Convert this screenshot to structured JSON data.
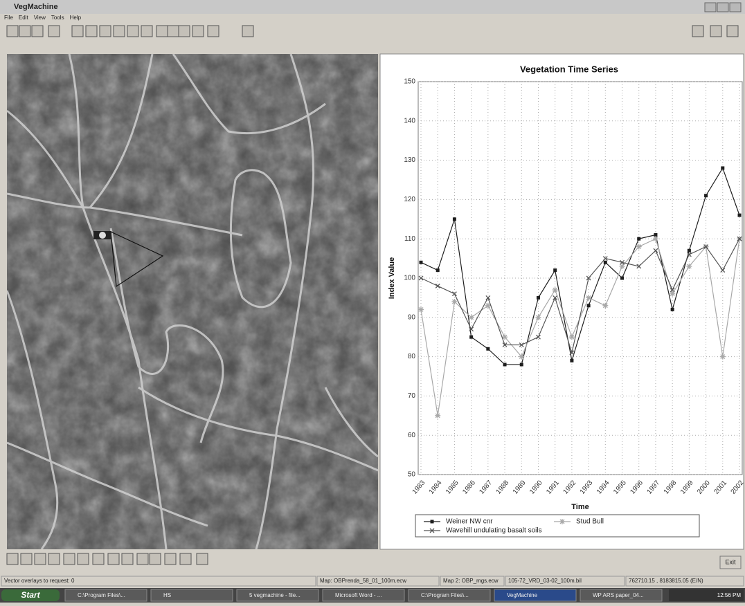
{
  "window": {
    "title": "VegMachine"
  },
  "menu": [
    "File",
    "Edit",
    "View",
    "Tools",
    "Help"
  ],
  "chart_data": {
    "type": "line",
    "title": "Vegetation Time Series",
    "x_label": "Time",
    "y_label": "Index Value",
    "categories": [
      "1983",
      "1984",
      "1985",
      "1986",
      "1987",
      "1988",
      "1989",
      "1990",
      "1991",
      "1992",
      "1993",
      "1994",
      "1995",
      "1996",
      "1997",
      "1998",
      "1999",
      "2000",
      "2001",
      "2002"
    ],
    "series": [
      {
        "name": "Weiner NW cnr",
        "color": "#1e1e1e",
        "marker": "square",
        "values": [
          104,
          102,
          115,
          85,
          82,
          78,
          78,
          95,
          102,
          79,
          93,
          104,
          100,
          110,
          111,
          92,
          107,
          121,
          128,
          116
        ]
      },
      {
        "name": "Stud Bull",
        "color": "#a8a8a8",
        "marker": "star",
        "values": [
          92,
          65,
          94,
          90,
          93,
          85,
          80,
          90,
          97,
          85,
          95,
          93,
          103,
          108,
          110,
          96,
          103,
          108,
          80,
          110
        ]
      },
      {
        "name": "Wavehill undulating basalt soils",
        "color": "#555555",
        "marker": "x",
        "values": [
          100,
          98,
          96,
          87,
          95,
          83,
          83,
          85,
          95,
          81,
          100,
          105,
          104,
          103,
          107,
          97,
          106,
          108,
          102,
          110
        ]
      }
    ],
    "ylim": [
      50,
      150
    ],
    "yticks": [
      50,
      60,
      70,
      80,
      90,
      100,
      110,
      120,
      130,
      140,
      150
    ],
    "grid": true
  },
  "buttons": {
    "exit": "Exit"
  },
  "status": [
    "Vector overlays to request: 0",
    "Map: OBPrenda_58_01_100m.ecw",
    "Map 2: OBP_mgs.ecw",
    "105-72_VRD_03-02_100m.bil",
    "762710.15 , 8183815.05 (E/N)"
  ],
  "taskbar": {
    "start": "Start",
    "items": [
      "C:\\Program Files\\...",
      "HS",
      "5 vegmachine - file...",
      "Microsoft Word - ...",
      "C:\\Program Files\\...",
      "VegMachine",
      "WP ARS paper_04..."
    ],
    "clock": "12:56 PM"
  }
}
